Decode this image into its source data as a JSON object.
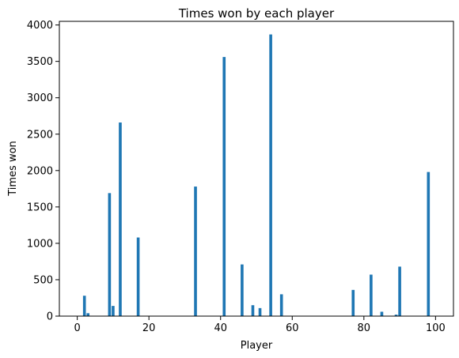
{
  "chart_data": {
    "type": "bar",
    "title": "Times won by each player",
    "xlabel": "Player",
    "ylabel": "Times won",
    "xlim": [
      -5,
      105
    ],
    "ylim": [
      0,
      4050
    ],
    "xticks": [
      0,
      20,
      40,
      60,
      80,
      100
    ],
    "yticks": [
      0,
      500,
      1000,
      1500,
      2000,
      2500,
      3000,
      3500,
      4000
    ],
    "grid": false,
    "bar_width": 0.8,
    "bar_color": "#1f77b4",
    "x": [
      2,
      3,
      9,
      10,
      12,
      17,
      33,
      41,
      46,
      49,
      51,
      54,
      57,
      77,
      82,
      85,
      89,
      90,
      98
    ],
    "values": [
      280,
      40,
      1690,
      140,
      2660,
      1080,
      1780,
      3560,
      710,
      150,
      110,
      3870,
      300,
      360,
      570,
      60,
      20,
      680,
      1980
    ]
  }
}
